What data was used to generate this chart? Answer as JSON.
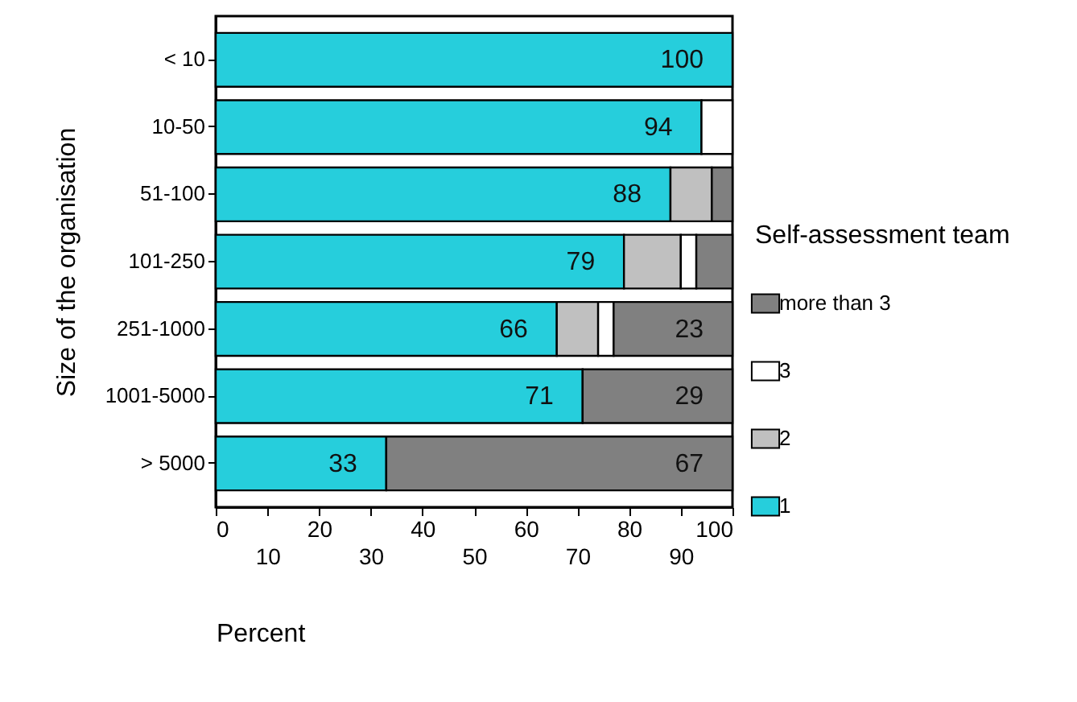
{
  "chart_data": {
    "type": "bar",
    "orientation": "horizontal",
    "stacked": true,
    "categories": [
      "< 10",
      "10-50",
      "51-100",
      "101-250",
      "251-1000",
      "1001-5000",
      "> 5000"
    ],
    "series": [
      {
        "name": "1",
        "color": "#26cedc",
        "values": [
          100,
          94,
          88,
          79,
          66,
          71,
          33
        ],
        "value_labels": [
          "100",
          "94",
          "88",
          "79",
          "66",
          "71",
          "33"
        ]
      },
      {
        "name": "2",
        "color": "#c0c0c0",
        "values": [
          0,
          0,
          8,
          11,
          8,
          0,
          0
        ]
      },
      {
        "name": "3",
        "color": "#ffffff",
        "values": [
          0,
          6,
          0,
          3,
          3,
          0,
          0
        ]
      },
      {
        "name": "more than 3",
        "color": "#808080",
        "values": [
          0,
          0,
          4,
          7,
          23,
          29,
          67
        ],
        "value_labels": [
          null,
          null,
          null,
          null,
          "23",
          "29",
          "67"
        ]
      }
    ],
    "xlim": [
      0,
      100
    ],
    "xticks": [
      0,
      {
        "value": 10,
        "label": null
      },
      20,
      {
        "value": 30,
        "label": null
      },
      40,
      {
        "value": 50,
        "label": null
      },
      60,
      {
        "value": 70,
        "label": null
      },
      80,
      {
        "value": 90,
        "label": null
      },
      100
    ],
    "x2lim": [
      0,
      100
    ],
    "x2ticks": [
      10,
      30,
      50,
      70,
      90
    ],
    "xlabel": "Percent",
    "ylabel": "Size of the organisation",
    "legend_title": "Self-assessment team",
    "legend": "right",
    "grid": false
  }
}
